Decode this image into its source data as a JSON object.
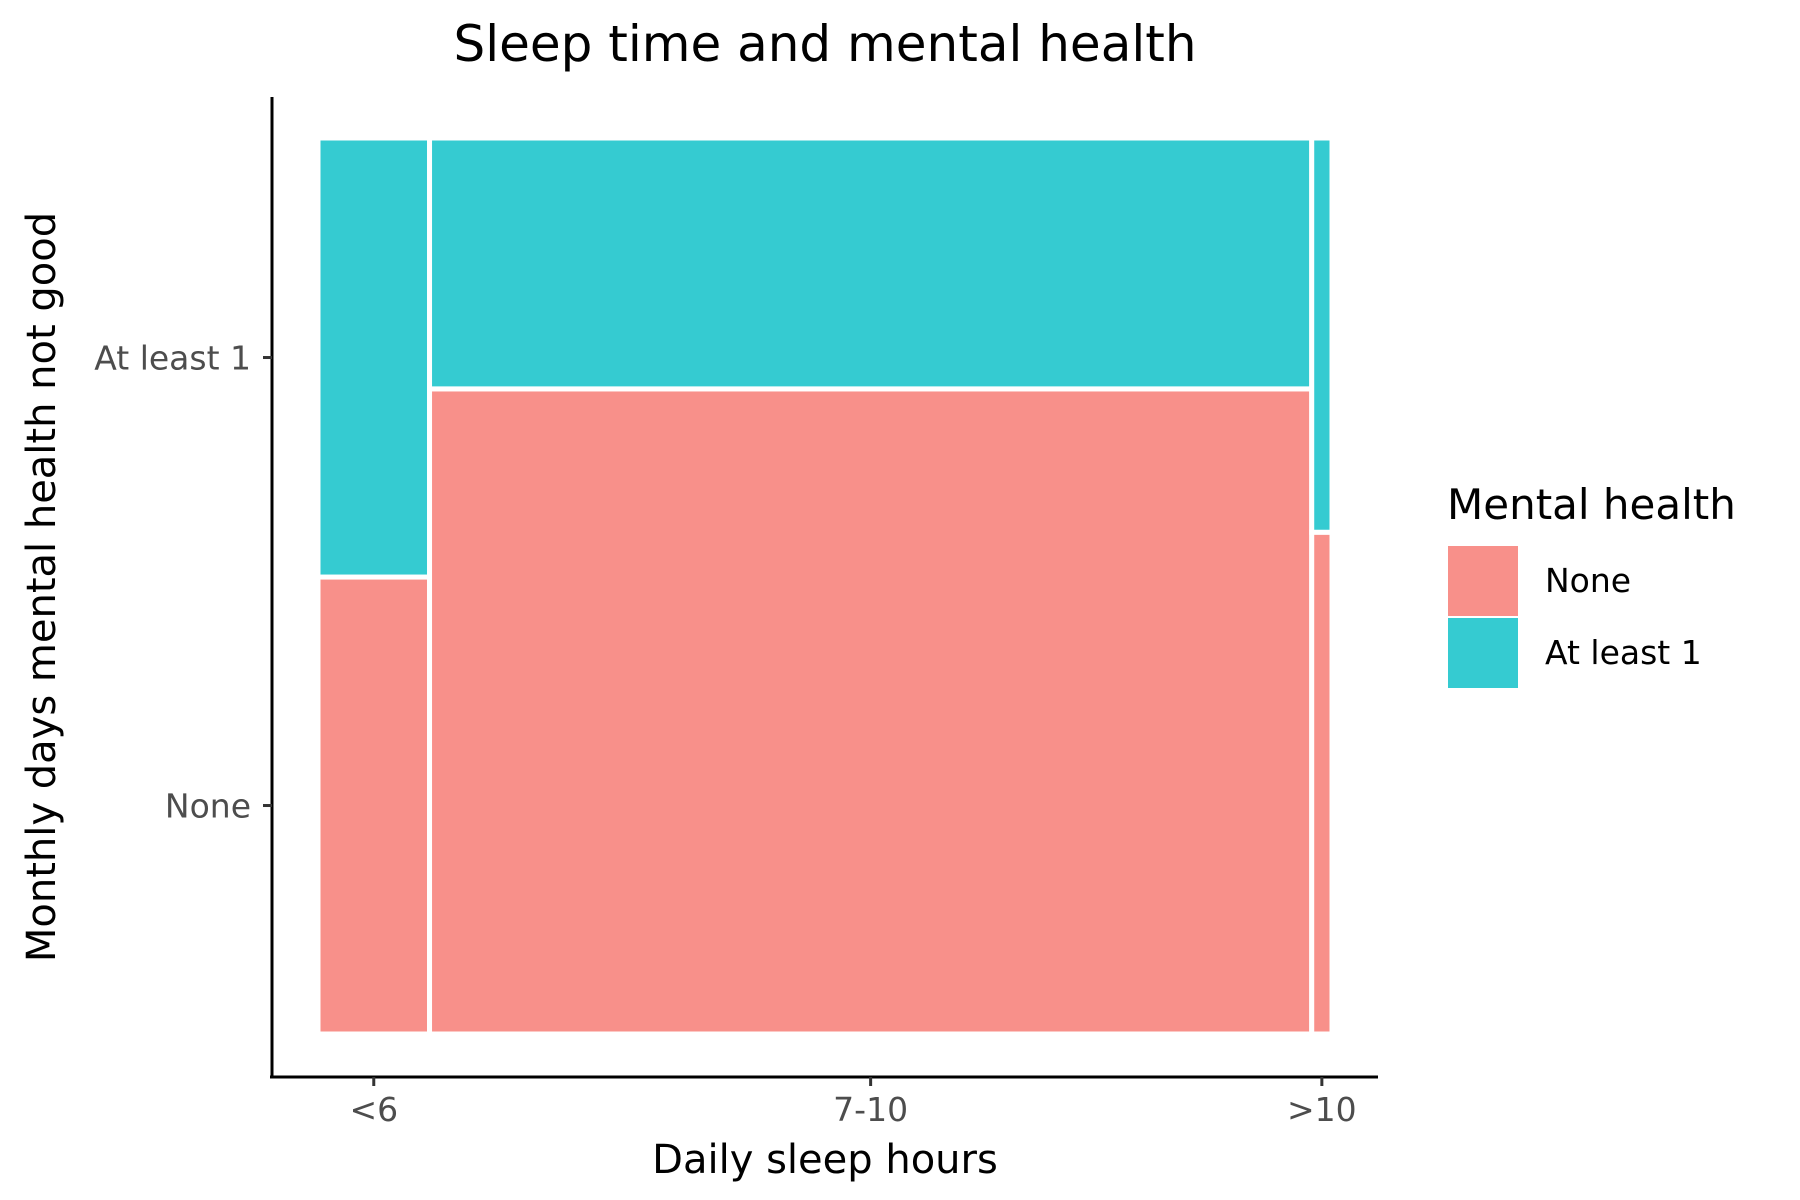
{
  "chart_data": {
    "type": "mosaic",
    "title": "Sleep time and mental health",
    "xlabel": "Daily sleep hours",
    "ylabel": "Monthly days mental health not good",
    "categories": [
      "<6",
      "7-10",
      ">10"
    ],
    "category_proportions": [
      0.11,
      0.87,
      0.02
    ],
    "y_ticks": [
      "None",
      "At least 1"
    ],
    "series": [
      {
        "name": "None",
        "color": "#F8908A",
        "values": [
          0.51,
          0.72,
          0.56
        ]
      },
      {
        "name": "At least 1",
        "color": "#35CBD1",
        "values": [
          0.49,
          0.28,
          0.44
        ]
      }
    ],
    "legend": {
      "title": "Mental health",
      "position": "right",
      "items": [
        "None",
        "At least 1"
      ]
    },
    "grid": false
  }
}
